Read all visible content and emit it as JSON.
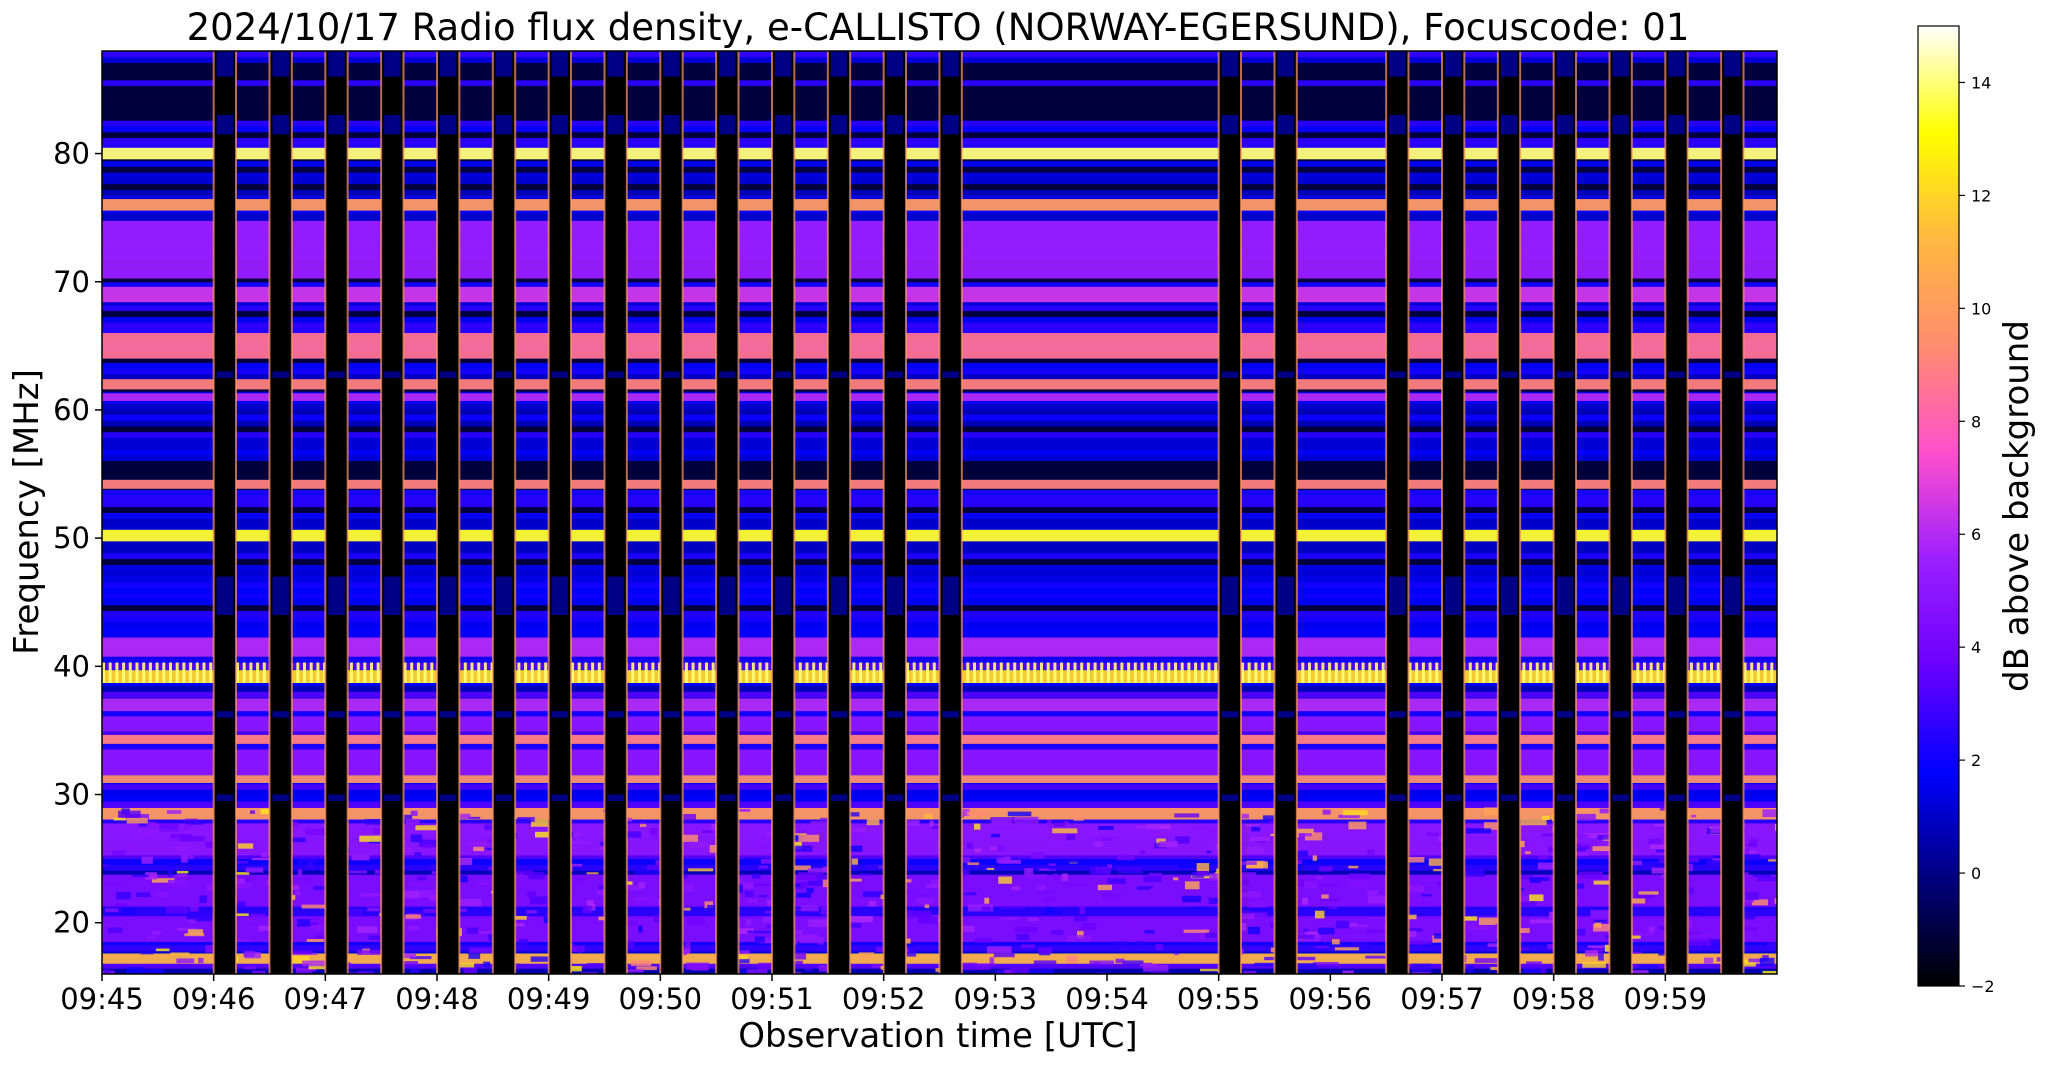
{
  "colors": {
    "colormap": [
      "#000000",
      "#00007d",
      "#0000ff",
      "#6a00ff",
      "#9c1fff",
      "#ff50cc",
      "#ff8c70",
      "#ffb840",
      "#ffff00",
      "#ffffff"
    ],
    "background": "#ffffff",
    "axis": "#000000"
  },
  "chart_data": {
    "type": "heatmap",
    "title": "2024/10/17  Radio flux density, e-CALLISTO (NORWAY-EGERSUND), Focuscode: 01",
    "xlabel": "Observation time [UTC]",
    "ylabel": "Frequency [MHz]",
    "colorbar_label": "dB above background",
    "colormap": "gnuplot2",
    "x_range_minutes": [
      0,
      15
    ],
    "x_ticks": [
      "09:45",
      "09:46",
      "09:47",
      "09:48",
      "09:49",
      "09:50",
      "09:51",
      "09:52",
      "09:53",
      "09:54",
      "09:55",
      "09:56",
      "09:57",
      "09:58",
      "09:59"
    ],
    "ylim": [
      16,
      88
    ],
    "y_ticks": [
      "20",
      "30",
      "40",
      "50",
      "60",
      "70",
      "80"
    ],
    "y_tick_values": [
      20,
      30,
      40,
      50,
      60,
      70,
      80
    ],
    "colorbar_range": [
      -2,
      15
    ],
    "colorbar_ticks": [
      "−2",
      "0",
      "2",
      "4",
      "6",
      "8",
      "10",
      "12",
      "14"
    ],
    "colorbar_tick_values": [
      -2,
      0,
      2,
      4,
      6,
      8,
      10,
      12,
      14
    ],
    "grid": false,
    "frequency_bands": [
      {
        "freq_mhz": 80.0,
        "level_db": 14,
        "width": 0.9,
        "continuous": false
      },
      {
        "freq_mhz": 76.0,
        "level_db": 10,
        "width": 0.9,
        "continuous": false
      },
      {
        "freq_mhz": 72.5,
        "level_db": 5.5,
        "width": 4.5,
        "continuous": false
      },
      {
        "freq_mhz": 69.0,
        "level_db": 6.5,
        "width": 1.2,
        "continuous": false
      },
      {
        "freq_mhz": 65.0,
        "level_db": 8.5,
        "width": 2.0,
        "continuous": false
      },
      {
        "freq_mhz": 62.0,
        "level_db": 9.0,
        "width": 0.8,
        "continuous": false
      },
      {
        "freq_mhz": 61.0,
        "level_db": 6.0,
        "width": 0.6,
        "continuous": false
      },
      {
        "freq_mhz": 54.2,
        "level_db": 9.0,
        "width": 0.7,
        "continuous": false
      },
      {
        "freq_mhz": 50.2,
        "level_db": 13.5,
        "width": 0.9,
        "continuous": false
      },
      {
        "freq_mhz": 41.5,
        "level_db": 6.0,
        "width": 1.5,
        "continuous": false
      },
      {
        "freq_mhz": 39.2,
        "level_db": 12.0,
        "width": 1.0,
        "continuous": true
      },
      {
        "freq_mhz": 37.0,
        "level_db": 6.0,
        "width": 1.0,
        "continuous": false
      },
      {
        "freq_mhz": 35.5,
        "level_db": 5.0,
        "width": 1.2,
        "continuous": false
      },
      {
        "freq_mhz": 34.3,
        "level_db": 9.0,
        "width": 0.7,
        "continuous": false
      },
      {
        "freq_mhz": 32.5,
        "level_db": 5.0,
        "width": 2.0,
        "continuous": true
      },
      {
        "freq_mhz": 31.2,
        "level_db": 9.5,
        "width": 0.6,
        "continuous": true
      },
      {
        "freq_mhz": 28.5,
        "level_db": 10.0,
        "width": 0.9,
        "continuous": false
      },
      {
        "freq_mhz": 26.5,
        "level_db": 5.0,
        "width": 2.5,
        "continuous": true
      },
      {
        "freq_mhz": 22.5,
        "level_db": 4.5,
        "width": 2.5,
        "continuous": true
      },
      {
        "freq_mhz": 19.5,
        "level_db": 4.5,
        "width": 2.0,
        "continuous": true
      },
      {
        "freq_mhz": 17.2,
        "level_db": 11.0,
        "width": 0.8,
        "continuous": true
      }
    ],
    "dark_column_intervals_minutes": [
      [
        1.0,
        1.2
      ],
      [
        1.5,
        1.7
      ],
      [
        2.0,
        2.2
      ],
      [
        2.5,
        2.7
      ],
      [
        3.0,
        3.2
      ],
      [
        3.5,
        3.7
      ],
      [
        4.0,
        4.2
      ],
      [
        4.5,
        4.7
      ],
      [
        5.0,
        5.2
      ],
      [
        5.5,
        5.7
      ],
      [
        6.0,
        6.2
      ],
      [
        6.5,
        6.7
      ],
      [
        7.0,
        7.2
      ],
      [
        7.5,
        7.7
      ],
      [
        10.0,
        10.2
      ],
      [
        10.5,
        10.7
      ],
      [
        11.5,
        11.7
      ],
      [
        12.0,
        12.2
      ],
      [
        12.5,
        12.7
      ],
      [
        13.0,
        13.2
      ],
      [
        13.5,
        13.7
      ],
      [
        14.0,
        14.2
      ],
      [
        14.5,
        14.7
      ]
    ],
    "quiet_interval_minutes": [
      10.7,
      11.5
    ]
  }
}
